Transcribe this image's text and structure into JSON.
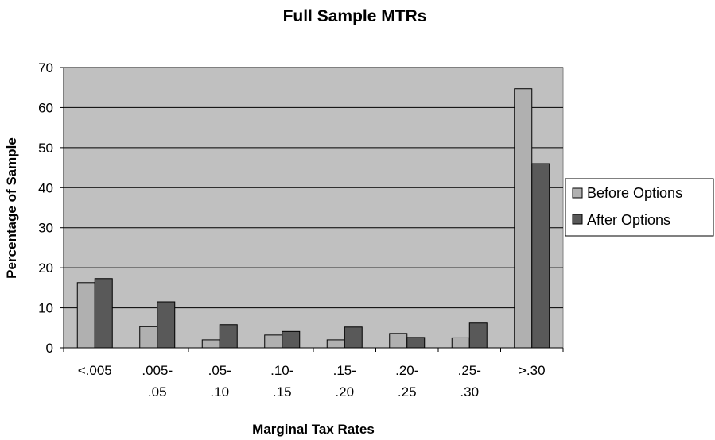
{
  "chart_data": {
    "type": "bar",
    "title": "Full Sample MTRs",
    "xlabel": "Marginal Tax Rates",
    "ylabel": "Percentage of Sample",
    "ylim": [
      0,
      70
    ],
    "yticks": [
      0,
      10,
      20,
      30,
      40,
      50,
      60,
      70
    ],
    "categories": [
      [
        "<.005"
      ],
      [
        ".005-",
        ".05"
      ],
      [
        ".05-",
        ".10"
      ],
      [
        ".10-",
        ".15"
      ],
      [
        ".15-",
        ".20"
      ],
      [
        ".20-",
        ".25"
      ],
      [
        ".25-",
        ".30"
      ],
      [
        ">.30"
      ]
    ],
    "series": [
      {
        "name": "Before Options",
        "color": "#b0b0b0",
        "values": [
          16.3,
          5.3,
          2.0,
          3.2,
          2.0,
          3.6,
          2.5,
          64.7
        ]
      },
      {
        "name": "After Options",
        "color": "#595959",
        "values": [
          17.3,
          11.5,
          5.8,
          4.1,
          5.2,
          2.6,
          6.2,
          46.0
        ]
      }
    ],
    "grid": true,
    "plot_background": "#c0c0c0",
    "legend_position": "right"
  }
}
